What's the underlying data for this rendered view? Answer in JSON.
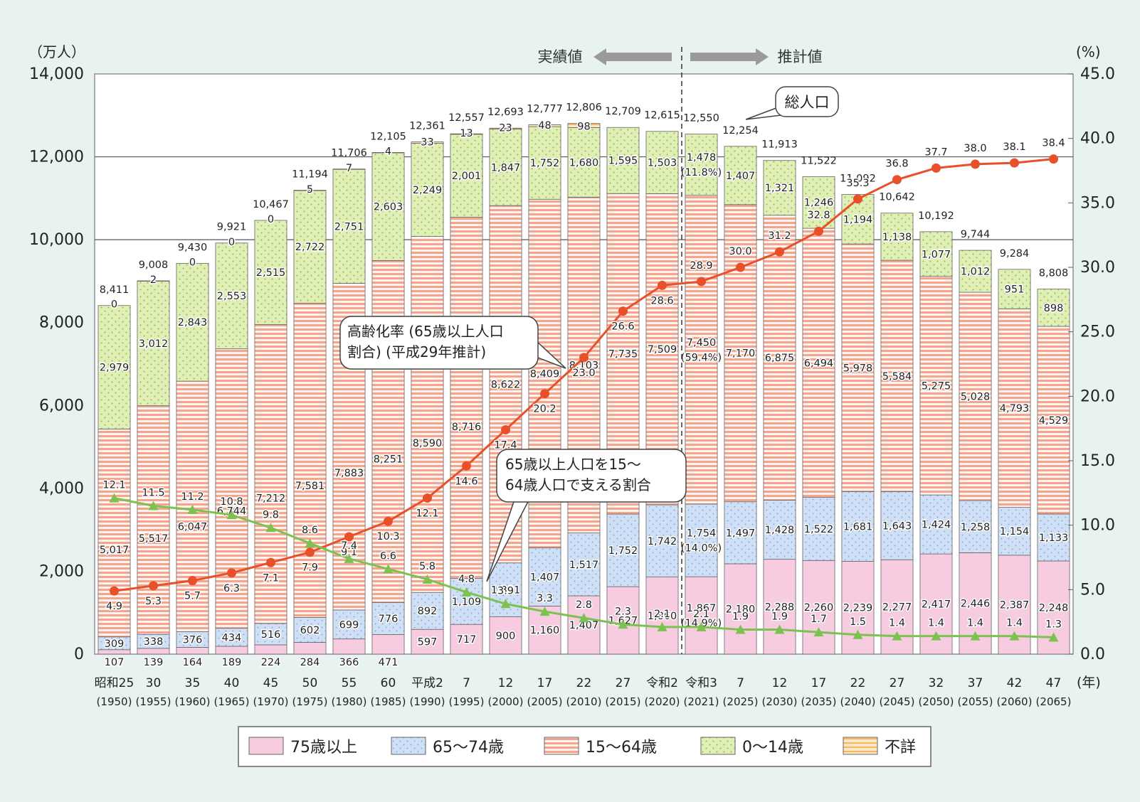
{
  "chart_data": {
    "type": "bar",
    "stacked": true,
    "y_left_unit": "（万人）",
    "y_right_unit": "(%)",
    "x_unit": "(年)",
    "ylim": [
      0,
      14000
    ],
    "y2lim": [
      0,
      45
    ],
    "y_ticks": [
      "0",
      "2,000",
      "4,000",
      "6,000",
      "8,000",
      "10,000",
      "12,000",
      "14,000"
    ],
    "y2_ticks": [
      "0.0",
      "5.0",
      "10.0",
      "15.0",
      "20.0",
      "25.0",
      "30.0",
      "35.0",
      "40.0",
      "45.0"
    ],
    "gridlines": [
      10000,
      12000
    ],
    "categories": [
      "昭和25",
      "30",
      "35",
      "40",
      "45",
      "50",
      "55",
      "60",
      "平成2",
      "7",
      "12",
      "17",
      "22",
      "27",
      "令和2",
      "令和3",
      "7",
      "12",
      "17",
      "22",
      "27",
      "32",
      "37",
      "42",
      "47"
    ],
    "years": [
      "(1950)",
      "(1955)",
      "(1960)",
      "(1965)",
      "(1970)",
      "(1975)",
      "(1980)",
      "(1985)",
      "(1990)",
      "(1995)",
      "(2000)",
      "(2005)",
      "(2010)",
      "(2015)",
      "(2020)",
      "(2021)",
      "(2025)",
      "(2030)",
      "(2035)",
      "(2040)",
      "(2045)",
      "(2050)",
      "(2055)",
      "(2060)",
      "(2065)"
    ],
    "series": [
      {
        "name": "75歳以上",
        "color": "#f6c8dc",
        "values": [
          107,
          139,
          164,
          189,
          224,
          284,
          366,
          471,
          597,
          717,
          900,
          1160,
          1407,
          1627,
          1860,
          1867,
          2180,
          2288,
          2260,
          2239,
          2277,
          2417,
          2446,
          2387,
          2248
        ]
      },
      {
        "name": "65〜74歳",
        "color": "#c8dcf4",
        "values": [
          309,
          338,
          376,
          434,
          516,
          602,
          699,
          776,
          892,
          1109,
          1301,
          1407,
          1517,
          1752,
          1742,
          1754,
          1497,
          1428,
          1522,
          1681,
          1643,
          1424,
          1258,
          1154,
          1133
        ]
      },
      {
        "name": "15〜64歳",
        "color": "#f5a48e",
        "values": [
          5017,
          5517,
          6047,
          6744,
          7212,
          7581,
          7883,
          8251,
          8590,
          8716,
          8622,
          8409,
          8103,
          7735,
          7509,
          7450,
          7170,
          6875,
          6494,
          5978,
          5584,
          5275,
          5028,
          4793,
          4529
        ]
      },
      {
        "name": "0〜14歳",
        "color": "#dcecae",
        "values": [
          2979,
          3012,
          2843,
          2553,
          2515,
          2722,
          2751,
          2603,
          2249,
          2001,
          1847,
          1752,
          1680,
          1595,
          1503,
          1478,
          1407,
          1321,
          1246,
          1194,
          1138,
          1077,
          1012,
          951,
          898
        ]
      },
      {
        "name": "不詳",
        "color": "#fbd9a6",
        "values": [
          0,
          2,
          0,
          0,
          0,
          5,
          7,
          4,
          33,
          13,
          23,
          48,
          98,
          null,
          null,
          null,
          null,
          null,
          null,
          null,
          null,
          null,
          null,
          null,
          null
        ]
      }
    ],
    "labels": {
      "s0": [
        "107",
        "139",
        "164",
        "189",
        "224",
        "284",
        "366",
        "471",
        "597",
        "717",
        "900",
        "1,160",
        "1,407",
        "1,627",
        "1,860",
        "1,867\n(14.9%)",
        "2,180",
        "2,288",
        "2,260",
        "2,239",
        "2,277",
        "2,417",
        "2,446",
        "2,387",
        "2,248"
      ],
      "s1": [
        "309",
        "338",
        "376",
        "434",
        "516",
        "602",
        "699",
        "776",
        "892",
        "1,109",
        "1,301",
        "1,407",
        "1,517",
        "1,752",
        "1,742",
        "1,754\n(14.0%)",
        "1,497",
        "1,428",
        "1,522",
        "1,681",
        "1,643",
        "1,424",
        "1,258",
        "1,154",
        "1,133"
      ],
      "s2": [
        "5,017",
        "5,517",
        "6,047",
        "6,744",
        "7,212",
        "7,581",
        "7,883",
        "8,251",
        "8,590",
        "8,716",
        "8,622",
        "8,409",
        "8,103",
        "7,735",
        "7,509",
        "7,450\n(59.4%)",
        "7,170",
        "6,875",
        "6,494",
        "5,978",
        "5,584",
        "5,275",
        "5,028",
        "4,793",
        "4,529"
      ],
      "s3": [
        "2,979",
        "3,012",
        "2,843",
        "2,553",
        "2,515",
        "2,722",
        "2,751",
        "2,603",
        "2,249",
        "2,001",
        "1,847",
        "1,752",
        "1,680",
        "1,595",
        "1,503",
        "1,478\n(11.8%)",
        "1,407",
        "1,321",
        "1,246",
        "1,194",
        "1,138",
        "1,077",
        "1,012",
        "951",
        "898"
      ],
      "s4": [
        "0",
        "2",
        "0",
        "0",
        "0",
        "5",
        "7",
        "4",
        "33",
        "13",
        "23",
        "48",
        "98",
        "",
        "",
        "",
        "",
        "",
        "",
        "",
        "",
        "",
        "",
        "",
        ""
      ]
    },
    "totals": [
      8411,
      9008,
      9430,
      9921,
      10467,
      11194,
      11706,
      12105,
      12361,
      12557,
      12693,
      12777,
      12806,
      12709,
      12615,
      12550,
      12254,
      11913,
      11522,
      11092,
      10642,
      10192,
      9744,
      9284,
      8808
    ],
    "total_labels": [
      "8,411",
      "9,008",
      "9,430",
      "9,921",
      "10,467",
      "11,194",
      "11,706",
      "12,105",
      "12,361",
      "12,557",
      "12,693",
      "12,777",
      "12,806",
      "12,709",
      "12,615",
      "12,550",
      "12,254",
      "11,913",
      "11,522",
      "11,092",
      "10,642",
      "10,192",
      "9,744",
      "9,284",
      "8,808"
    ],
    "aging_rate": {
      "color": "#e8502a",
      "values": [
        4.9,
        5.3,
        5.7,
        6.3,
        7.1,
        7.9,
        9.1,
        10.3,
        12.1,
        14.6,
        17.4,
        20.2,
        23.0,
        26.6,
        28.6,
        28.9,
        30.0,
        31.2,
        32.8,
        35.3,
        36.8,
        37.7,
        38.0,
        38.1,
        38.4
      ],
      "labels": [
        "4.9",
        "5.3",
        "5.7",
        "6.3",
        "7.1",
        "7.9",
        "9.1",
        "10.3",
        "12.1",
        "14.6",
        "17.4",
        "20.2",
        "23.0",
        "26.6",
        "28.6",
        "28.9",
        "30.0",
        "31.2",
        "32.8",
        "35.3",
        "36.8",
        "37.7",
        "38.0",
        "38.1",
        "38.4"
      ]
    },
    "support_ratio": {
      "color": "#7cc250",
      "values": [
        12.1,
        11.5,
        11.2,
        10.8,
        9.8,
        8.6,
        7.4,
        6.6,
        5.8,
        4.8,
        3.9,
        3.3,
        2.8,
        2.3,
        2.1,
        2.1,
        1.9,
        1.9,
        1.7,
        1.5,
        1.4,
        1.4,
        1.4,
        1.4,
        1.3
      ],
      "labels": [
        "12.1",
        "11.5",
        "11.2",
        "10.8",
        "9.8",
        "8.6",
        "7.4",
        "6.6",
        "5.8",
        "4.8",
        "3.9",
        "3.3",
        "2.8",
        "2.3",
        "2.1",
        "2.1",
        "1.9",
        "1.9",
        "1.7",
        "1.5",
        "1.4",
        "1.4",
        "1.4",
        "1.4",
        "1.3"
      ]
    },
    "header_actual": "実績値",
    "header_projection": "推計値",
    "callout_total": "総人口",
    "callout_aging": [
      "高齢化率 (65歳以上人口",
      "割合) (平成29年推計)"
    ],
    "callout_support": [
      "65歳以上人口を15〜",
      "64歳人口で支える割合"
    ],
    "legend": [
      "75歳以上",
      "65〜74歳",
      "15〜64歳",
      "0〜14歳",
      "不詳"
    ]
  }
}
